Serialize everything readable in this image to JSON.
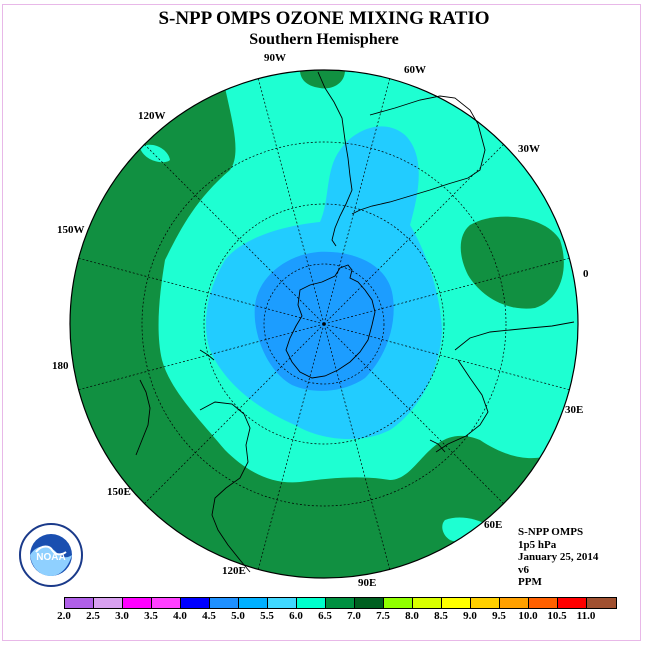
{
  "title": "S-NPP OMPS OZONE MIXING RATIO",
  "subtitle": "Southern Hemisphere",
  "longitude_labels": {
    "w90": "90W",
    "w60": "60W",
    "w30": "30W",
    "e0": "0",
    "e30": "30E",
    "e60": "60E",
    "e90": "90E",
    "e120": "120E",
    "e150": "150E",
    "e180": "180",
    "w150": "150W",
    "w120": "120W"
  },
  "info": {
    "instrument": "S-NPP OMPS",
    "level": "1p5 hPa",
    "date": "January 25, 2014",
    "version": "v6",
    "units": "PPM"
  },
  "logo": {
    "text": "NOAA",
    "icon": "noaa-logo"
  },
  "colorbar": {
    "ticks": [
      "2.0",
      "2.5",
      "3.0",
      "3.5",
      "4.0",
      "4.5",
      "5.0",
      "5.5",
      "6.0",
      "6.5",
      "7.0",
      "7.5",
      "8.0",
      "8.5",
      "9.0",
      "9.5",
      "10.0",
      "10.5",
      "11.0"
    ],
    "colors": [
      "#b060e8",
      "#d8a0f0",
      "#ff00ff",
      "#ff40ff",
      "#0000ff",
      "#1e90ff",
      "#00b0ff",
      "#40d8ff",
      "#00ffcc",
      "#009040",
      "#006020",
      "#90ff00",
      "#d8ff00",
      "#ffff00",
      "#ffd000",
      "#ffa000",
      "#ff6000",
      "#ff0000",
      "#a05030"
    ]
  },
  "map_colors": {
    "dark_green": "#119041",
    "cyan_green": "#1effd2",
    "light_blue": "#22ccff",
    "blue": "#1c9dff",
    "coast": "#000000"
  }
}
